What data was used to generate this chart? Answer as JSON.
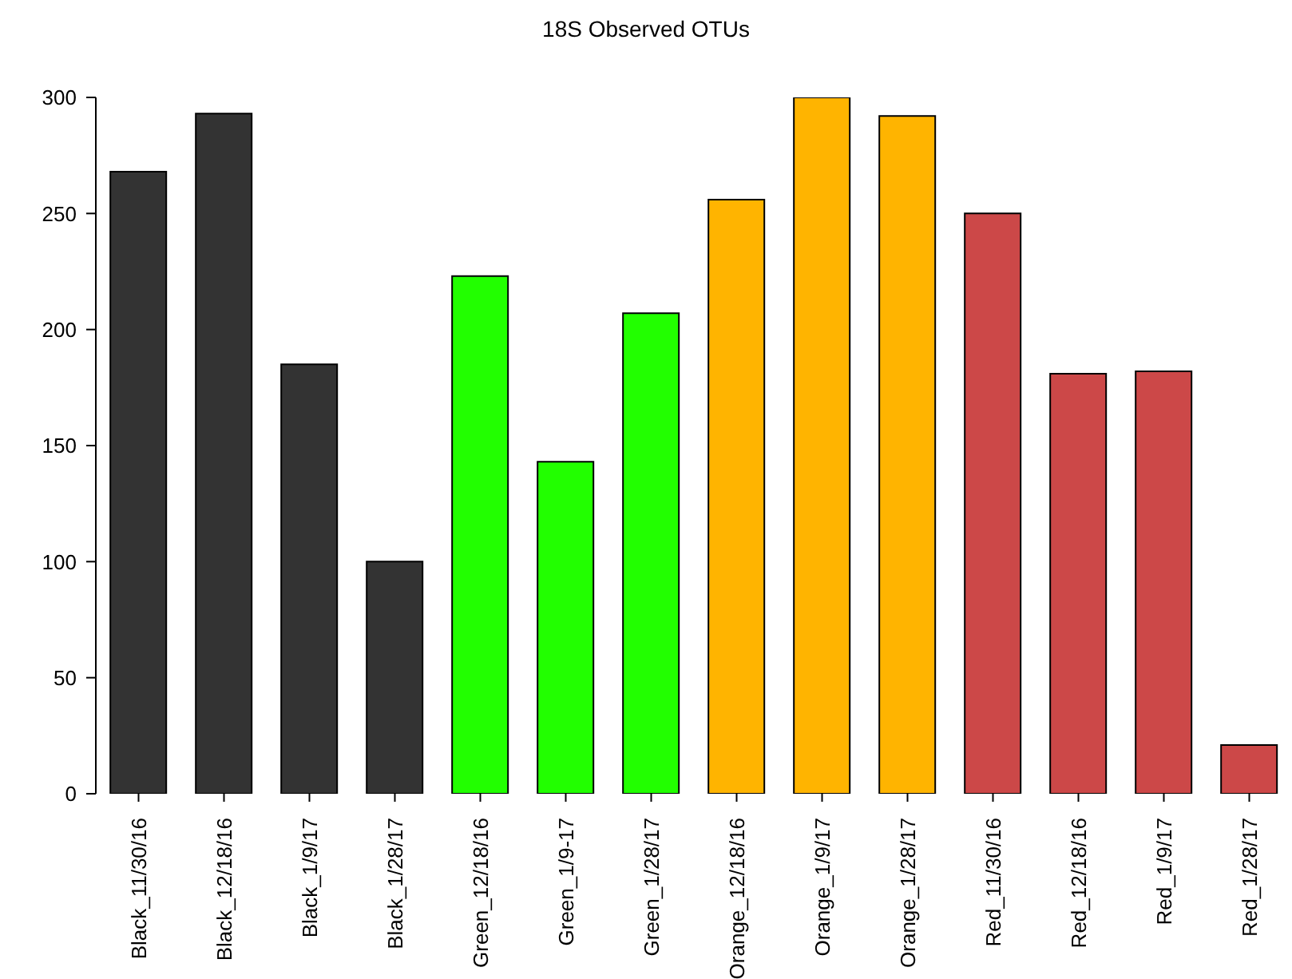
{
  "chart_data": {
    "type": "bar",
    "title": "18S Observed OTUs",
    "categories": [
      "Black_11/30/16",
      "Black_12/18/16",
      "Black_1/9/17",
      "Black_1/28/17",
      "Green_12/18/16",
      "Green_1/9-17",
      "Green_1/28/17",
      "Orange_12/18/16",
      "Orange_1/9/17",
      "Orange_1/28/17",
      "Red_11/30/16",
      "Red_12/18/16",
      "Red_1/9/17",
      "Red_1/28/17"
    ],
    "values": [
      268,
      293,
      185,
      100,
      223,
      143,
      207,
      256,
      300,
      292,
      250,
      181,
      182,
      21
    ],
    "colors": [
      "#333333",
      "#333333",
      "#333333",
      "#333333",
      "#22ff00",
      "#22ff00",
      "#22ff00",
      "#ffb400",
      "#ffb400",
      "#ffb400",
      "#cc4848",
      "#cc4848",
      "#cc4848",
      "#cc4848"
    ],
    "ylim": [
      0,
      300
    ],
    "yticks": [
      0,
      50,
      100,
      150,
      200,
      250,
      300
    ],
    "grid": false
  }
}
